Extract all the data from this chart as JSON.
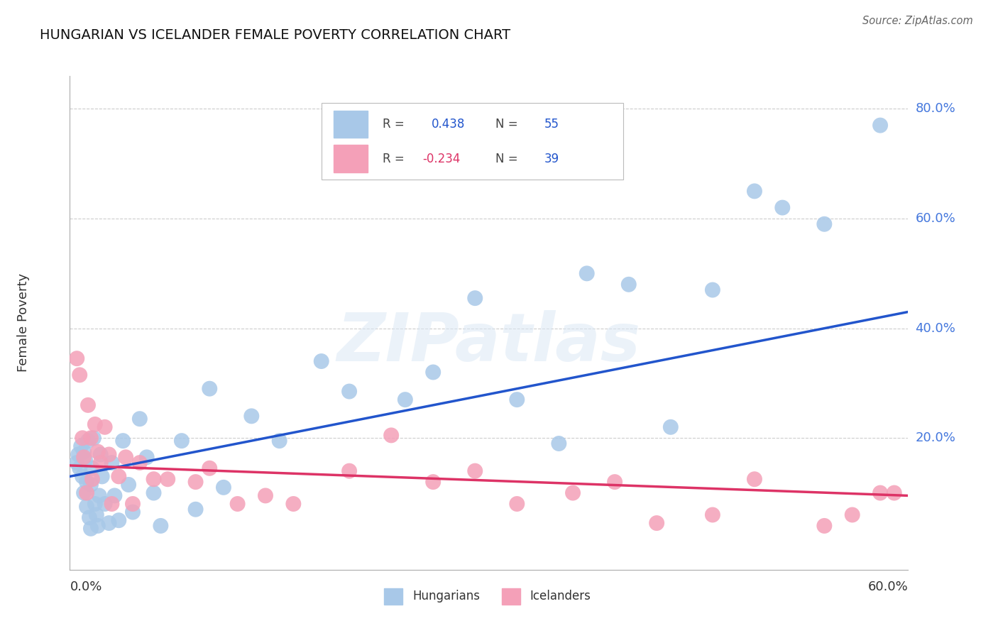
{
  "title": "HUNGARIAN VS ICELANDER FEMALE POVERTY CORRELATION CHART",
  "source": "Source: ZipAtlas.com",
  "ylabel": "Female Poverty",
  "xlim": [
    0.0,
    0.6
  ],
  "ylim": [
    -0.04,
    0.86
  ],
  "ytick_positions": [
    0.2,
    0.4,
    0.6,
    0.8
  ],
  "ytick_labels": [
    "20.0%",
    "40.0%",
    "60.0%",
    "80.0%"
  ],
  "hungarian_R": "0.438",
  "hungarian_N": "55",
  "icelander_R": "-0.234",
  "icelander_N": "39",
  "hungarian_color": "#a8c8e8",
  "icelander_color": "#f4a0b8",
  "hungarian_line_color": "#2255cc",
  "icelander_line_color": "#dd3366",
  "watermark": "ZIPatlas",
  "hungarian_line_x0": 0.0,
  "hungarian_line_y0": 0.13,
  "hungarian_line_x1": 0.6,
  "hungarian_line_y1": 0.43,
  "icelander_line_x0": 0.0,
  "icelander_line_y0": 0.15,
  "icelander_line_x1": 0.6,
  "icelander_line_y1": 0.095,
  "hungarian_x": [
    0.005,
    0.006,
    0.007,
    0.008,
    0.009,
    0.01,
    0.01,
    0.011,
    0.012,
    0.012,
    0.013,
    0.014,
    0.015,
    0.015,
    0.016,
    0.017,
    0.018,
    0.019,
    0.02,
    0.021,
    0.022,
    0.023,
    0.025,
    0.028,
    0.03,
    0.032,
    0.035,
    0.038,
    0.042,
    0.045,
    0.05,
    0.055,
    0.06,
    0.065,
    0.08,
    0.09,
    0.1,
    0.11,
    0.13,
    0.15,
    0.18,
    0.2,
    0.24,
    0.26,
    0.29,
    0.32,
    0.35,
    0.37,
    0.4,
    0.43,
    0.46,
    0.49,
    0.51,
    0.54,
    0.58
  ],
  "hungarian_y": [
    0.155,
    0.17,
    0.145,
    0.185,
    0.13,
    0.175,
    0.1,
    0.16,
    0.075,
    0.12,
    0.195,
    0.055,
    0.035,
    0.115,
    0.145,
    0.2,
    0.08,
    0.06,
    0.04,
    0.095,
    0.17,
    0.13,
    0.08,
    0.045,
    0.155,
    0.095,
    0.05,
    0.195,
    0.115,
    0.065,
    0.235,
    0.165,
    0.1,
    0.04,
    0.195,
    0.07,
    0.29,
    0.11,
    0.24,
    0.195,
    0.34,
    0.285,
    0.27,
    0.32,
    0.455,
    0.27,
    0.19,
    0.5,
    0.48,
    0.22,
    0.47,
    0.65,
    0.62,
    0.59,
    0.77
  ],
  "icelander_x": [
    0.005,
    0.007,
    0.009,
    0.01,
    0.012,
    0.013,
    0.015,
    0.016,
    0.018,
    0.02,
    0.022,
    0.025,
    0.028,
    0.03,
    0.035,
    0.04,
    0.045,
    0.05,
    0.06,
    0.07,
    0.09,
    0.1,
    0.12,
    0.14,
    0.16,
    0.2,
    0.23,
    0.26,
    0.29,
    0.32,
    0.36,
    0.39,
    0.42,
    0.46,
    0.49,
    0.54,
    0.56,
    0.58,
    0.59
  ],
  "icelander_y": [
    0.345,
    0.315,
    0.2,
    0.165,
    0.1,
    0.26,
    0.2,
    0.125,
    0.225,
    0.175,
    0.155,
    0.22,
    0.17,
    0.08,
    0.13,
    0.165,
    0.08,
    0.155,
    0.125,
    0.125,
    0.12,
    0.145,
    0.08,
    0.095,
    0.08,
    0.14,
    0.205,
    0.12,
    0.14,
    0.08,
    0.1,
    0.12,
    0.045,
    0.06,
    0.125,
    0.04,
    0.06,
    0.1,
    0.1
  ]
}
